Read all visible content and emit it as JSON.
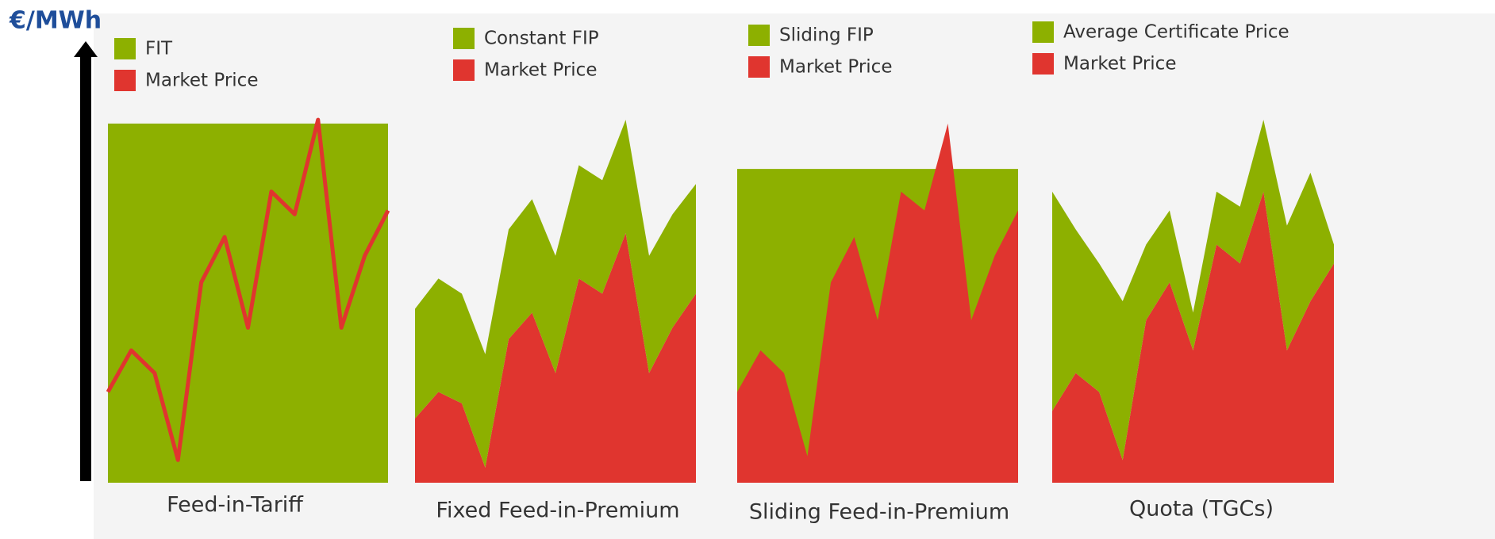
{
  "y_axis_label": "€/MWh",
  "chart_data": [
    {
      "type": "area",
      "xlabel": "Feed-in-Tariff",
      "stacked": false,
      "ylim": [
        0,
        100
      ],
      "series": [
        {
          "name": "FIT",
          "color": "#8db000",
          "kind": "area",
          "values": [
            95,
            95,
            95,
            95,
            95,
            95,
            95,
            95,
            95,
            95,
            95,
            95,
            95
          ]
        },
        {
          "name": "Market Price",
          "color": "#e0352f",
          "kind": "line",
          "values": [
            24,
            35,
            29,
            6,
            53,
            65,
            41,
            77,
            71,
            96,
            41,
            60,
            72
          ]
        }
      ]
    },
    {
      "type": "area",
      "xlabel": "Fixed Feed-in-Premium",
      "stacked": true,
      "ylim": [
        0,
        100
      ],
      "series": [
        {
          "name": "Constant FIP",
          "color": "#8db000",
          "kind": "area",
          "values": [
            29,
            30,
            29,
            30,
            29,
            30,
            31,
            30,
            30,
            30,
            31,
            30,
            29
          ]
        },
        {
          "name": "Market Price",
          "color": "#e0352f",
          "kind": "area",
          "values": [
            17,
            24,
            21,
            4,
            38,
            45,
            29,
            54,
            50,
            66,
            29,
            41,
            50
          ]
        }
      ]
    },
    {
      "type": "area",
      "xlabel": "Sliding Feed-in-Premium",
      "stacked": false,
      "ylim": [
        0,
        100
      ],
      "series": [
        {
          "name": "Sliding FIP",
          "color": "#8db000",
          "kind": "area",
          "values": [
            83,
            83,
            83,
            83,
            83,
            83,
            83,
            83,
            83,
            83,
            83,
            83,
            83
          ]
        },
        {
          "name": "Market Price",
          "color": "#e0352f",
          "kind": "area",
          "values": [
            24,
            35,
            29,
            7,
            53,
            65,
            43,
            77,
            72,
            95,
            43,
            60,
            72
          ]
        }
      ]
    },
    {
      "type": "area",
      "xlabel": "Quota (TGCs)",
      "stacked": true,
      "ylim": [
        0,
        100
      ],
      "series": [
        {
          "name": "Average Certificate Price",
          "color": "#8db000",
          "kind": "area",
          "values": [
            58,
            38,
            34,
            42,
            20,
            19,
            10,
            14,
            15,
            19,
            33,
            34,
            5
          ]
        },
        {
          "name": "Market Price",
          "color": "#e0352f",
          "kind": "area",
          "values": [
            19,
            29,
            24,
            6,
            43,
            53,
            35,
            63,
            58,
            77,
            35,
            48,
            58
          ]
        }
      ]
    }
  ]
}
